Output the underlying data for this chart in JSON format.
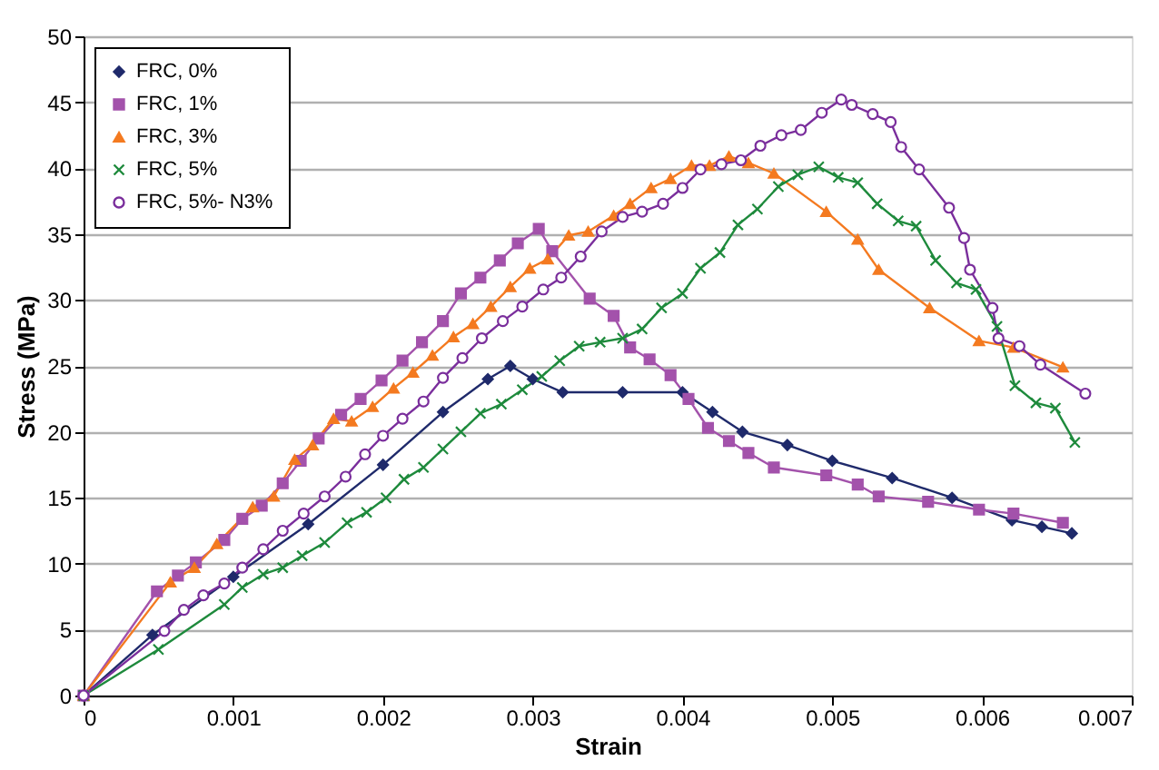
{
  "chart_data": {
    "type": "line",
    "xlabel": "Strain",
    "ylabel": "Stress (MPa)",
    "xlim": [
      0,
      0.007
    ],
    "xticks": [
      0,
      0.001,
      0.002,
      0.003,
      0.004,
      0.005,
      0.006,
      0.007
    ],
    "ylim": [
      0,
      50
    ],
    "yticks": [
      0,
      5,
      10,
      15,
      20,
      25,
      30,
      35,
      40,
      45,
      50
    ],
    "grid": "y",
    "legend": "top left",
    "line_style": "solid",
    "series": [
      {
        "name": "FRC, 0%",
        "color": "#1f2a6b",
        "marker": "diamond",
        "x": [
          0,
          0.00046,
          0.001,
          0.0015,
          0.002,
          0.0024,
          0.0027,
          0.00285,
          0.003,
          0.0032,
          0.0036,
          0.004,
          0.0042,
          0.0044,
          0.0047,
          0.005,
          0.0054,
          0.0058,
          0.0062,
          0.0064,
          0.0066
        ],
        "values": [
          0,
          4.6,
          9,
          13,
          17.5,
          21.5,
          24,
          25,
          24,
          23,
          23,
          23,
          21.5,
          20,
          19,
          17.8,
          16.5,
          15,
          13.3,
          12.8,
          12.3
        ]
      },
      {
        "name": "FRC, 1%",
        "color": "#a352ab",
        "marker": "square",
        "x": [
          0,
          0.00049,
          0.00063,
          0.00075,
          0.00094,
          0.00106,
          0.00119,
          0.00133,
          0.00145,
          0.00157,
          0.00172,
          0.00185,
          0.00199,
          0.00213,
          0.00226,
          0.0024,
          0.00252,
          0.00265,
          0.00278,
          0.0029,
          0.00304,
          0.00313,
          0.00338,
          0.00354,
          0.00365,
          0.00378,
          0.00392,
          0.00404,
          0.00417,
          0.00431,
          0.00444,
          0.00461,
          0.00496,
          0.00517,
          0.00531,
          0.00564,
          0.00598,
          0.00621,
          0.00654
        ],
        "values": [
          0,
          7.9,
          9.1,
          10.1,
          11.8,
          13.4,
          14.4,
          16.1,
          17.8,
          19.5,
          21.3,
          22.5,
          23.9,
          25.4,
          26.8,
          28.4,
          30.5,
          31.7,
          33,
          34.3,
          35.4,
          33.7,
          30.1,
          28.8,
          26.4,
          25.5,
          24.3,
          22.5,
          20.3,
          19.3,
          18.4,
          17.3,
          16.7,
          16,
          15.1,
          14.7,
          14.1,
          13.8,
          13.1
        ]
      },
      {
        "name": "FRC, 3%",
        "color": "#f47a20",
        "marker": "triangle",
        "x": [
          0,
          0.00058,
          0.00074,
          0.00089,
          0.00113,
          0.00127,
          0.00141,
          0.00153,
          0.00167,
          0.00179,
          0.00193,
          0.00207,
          0.0022,
          0.00233,
          0.00247,
          0.0026,
          0.00272,
          0.00285,
          0.00298,
          0.0031,
          0.00324,
          0.00337,
          0.00354,
          0.00365,
          0.00379,
          0.00392,
          0.00406,
          0.00418,
          0.00431,
          0.00444,
          0.00461,
          0.00496,
          0.00517,
          0.00531,
          0.00565,
          0.00598,
          0.00621,
          0.00654
        ],
        "values": [
          0,
          8.6,
          9.7,
          11.5,
          14.3,
          15.1,
          17.9,
          19,
          21,
          20.8,
          21.9,
          23.3,
          24.5,
          25.8,
          27.2,
          28.2,
          29.5,
          31,
          32.4,
          33.1,
          34.9,
          35.2,
          36.4,
          37.3,
          38.5,
          39.2,
          40.2,
          40.2,
          40.9,
          40.4,
          39.6,
          36.7,
          34.6,
          32.3,
          29.4,
          26.9,
          26.4,
          24.9
        ]
      },
      {
        "name": "FRC, 5%",
        "color": "#1e8a3c",
        "marker": "cross",
        "x": [
          0,
          0.0005,
          0.00094,
          0.00106,
          0.0012,
          0.00133,
          0.00146,
          0.00161,
          0.00176,
          0.00189,
          0.00202,
          0.00214,
          0.00227,
          0.0024,
          0.00252,
          0.00265,
          0.00279,
          0.00293,
          0.00306,
          0.00318,
          0.00331,
          0.00345,
          0.0036,
          0.00373,
          0.00386,
          0.004,
          0.00412,
          0.00425,
          0.00437,
          0.0045,
          0.00464,
          0.00477,
          0.00491,
          0.00504,
          0.00517,
          0.0053,
          0.00544,
          0.00556,
          0.00569,
          0.00583,
          0.00596,
          0.0061,
          0.00622,
          0.00636,
          0.00649,
          0.00662
        ],
        "values": [
          0,
          3.5,
          6.9,
          8.2,
          9.2,
          9.7,
          10.6,
          11.6,
          13.1,
          13.9,
          15,
          16.4,
          17.3,
          18.7,
          20,
          21.4,
          22.1,
          23.2,
          24.2,
          25.4,
          26.5,
          26.8,
          27.1,
          27.8,
          29.4,
          30.5,
          32.4,
          33.6,
          35.7,
          36.9,
          38.6,
          39.5,
          40.1,
          39.3,
          38.9,
          37.3,
          36,
          35.6,
          33,
          31.3,
          30.8,
          28,
          23.5,
          22.2,
          21.8,
          19.2
        ]
      },
      {
        "name": "FRC, 5%- N3%",
        "color": "#7a2e9c",
        "marker": "circle",
        "x": [
          0,
          0.00054,
          0.00067,
          0.0008,
          0.00094,
          0.00106,
          0.0012,
          0.00133,
          0.00147,
          0.00161,
          0.00175,
          0.00188,
          0.002,
          0.00213,
          0.00227,
          0.0024,
          0.00253,
          0.00266,
          0.0028,
          0.00293,
          0.00307,
          0.00319,
          0.00332,
          0.00346,
          0.0036,
          0.00373,
          0.00387,
          0.004,
          0.00412,
          0.00426,
          0.00439,
          0.00452,
          0.00466,
          0.00479,
          0.00493,
          0.00506,
          0.00513,
          0.00527,
          0.00539,
          0.00546,
          0.00558,
          0.00578,
          0.00588,
          0.00592,
          0.00607,
          0.00611,
          0.00625,
          0.00639,
          0.00669
        ],
        "values": [
          0,
          4.9,
          6.5,
          7.6,
          8.5,
          9.7,
          11.1,
          12.5,
          13.8,
          15.1,
          16.6,
          18.3,
          19.7,
          21,
          22.3,
          24.1,
          25.6,
          27.1,
          28.4,
          29.5,
          30.8,
          31.7,
          33.3,
          35.2,
          36.3,
          36.7,
          37.3,
          38.5,
          39.9,
          40.3,
          40.6,
          41.7,
          42.5,
          42.9,
          44.2,
          45.2,
          44.8,
          44.1,
          43.5,
          41.6,
          39.9,
          37,
          34.7,
          32.3,
          29.4,
          27.1,
          26.5,
          25.1,
          22.9
        ]
      }
    ]
  }
}
